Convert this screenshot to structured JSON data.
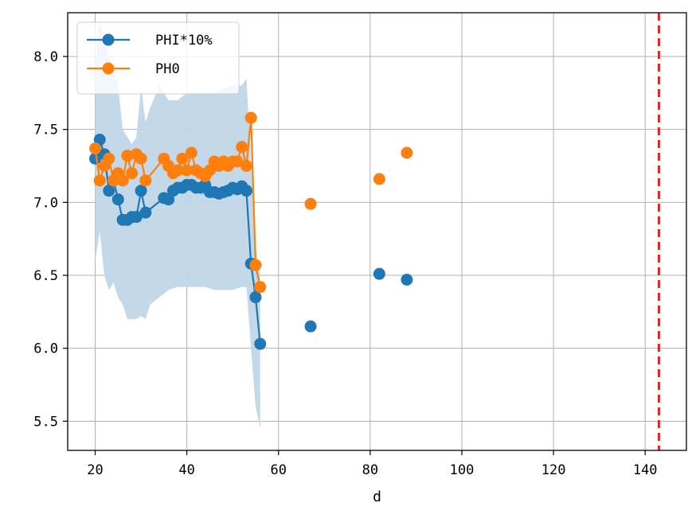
{
  "chart_data": {
    "type": "line",
    "title": "",
    "xlabel": "d",
    "ylabel": "",
    "xlim": [
      14,
      149
    ],
    "ylim": [
      5.3,
      8.3
    ],
    "xticks": [
      20,
      40,
      60,
      80,
      100,
      120,
      140
    ],
    "yticks": [
      5.5,
      6.0,
      6.5,
      7.0,
      7.5,
      8.0
    ],
    "xtick_labels": [
      "20",
      "40",
      "60",
      "80",
      "100",
      "120",
      "140"
    ],
    "ytick_labels": [
      "5.5",
      "6.0",
      "6.5",
      "7.0",
      "7.5",
      "8.0"
    ],
    "grid": true,
    "legend_position": "top-left",
    "vertical_line": {
      "x": 143,
      "color": "#ff0000",
      "style": "dashed"
    },
    "band": {
      "color": "#c0d6e8",
      "x": [
        20,
        21,
        22,
        23,
        24,
        25,
        26,
        27,
        28,
        29,
        30,
        31,
        32,
        34,
        36,
        38,
        40,
        42,
        44,
        46,
        48,
        50,
        52,
        53,
        54,
        55,
        56
      ],
      "upper": [
        7.95,
        8.25,
        8.1,
        8.0,
        7.9,
        7.8,
        7.5,
        7.45,
        7.4,
        7.45,
        7.8,
        7.55,
        7.65,
        7.8,
        7.7,
        7.7,
        7.75,
        7.75,
        7.75,
        7.75,
        7.78,
        7.8,
        7.8,
        7.85,
        7.3,
        6.7,
        6.5
      ],
      "lower": [
        6.6,
        6.8,
        6.5,
        6.4,
        6.45,
        6.35,
        6.3,
        6.2,
        6.2,
        6.2,
        6.22,
        6.2,
        6.3,
        6.35,
        6.4,
        6.42,
        6.42,
        6.42,
        6.42,
        6.4,
        6.4,
        6.4,
        6.42,
        6.42,
        6.0,
        5.6,
        5.45
      ]
    },
    "series": [
      {
        "name": "PHI*10%",
        "color": "#1f77b4",
        "x": [
          20,
          21,
          22,
          23,
          24,
          25,
          26,
          27,
          28,
          29,
          30,
          31,
          35,
          36,
          37,
          38,
          39,
          40,
          41,
          42,
          43,
          44,
          45,
          46,
          47,
          48,
          49,
          50,
          51,
          52,
          53,
          54,
          55,
          56
        ],
        "y": [
          7.3,
          7.43,
          7.33,
          7.08,
          7.15,
          7.02,
          6.88,
          6.88,
          6.9,
          6.9,
          7.08,
          6.93,
          7.03,
          7.02,
          7.08,
          7.1,
          7.1,
          7.12,
          7.12,
          7.1,
          7.1,
          7.12,
          7.07,
          7.07,
          7.06,
          7.07,
          7.08,
          7.1,
          7.09,
          7.11,
          7.08,
          6.58,
          6.35,
          6.03
        ],
        "extra_x": [
          67,
          82,
          88
        ],
        "extra_y": [
          6.15,
          6.51,
          6.47
        ]
      },
      {
        "name": "PH0",
        "color": "#ff7f0e",
        "x": [
          20,
          21,
          22,
          23,
          24,
          25,
          26,
          27,
          28,
          29,
          30,
          31,
          35,
          36,
          37,
          38,
          39,
          40,
          41,
          42,
          43,
          44,
          45,
          46,
          47,
          48,
          49,
          50,
          51,
          52,
          53,
          54,
          55,
          56
        ],
        "y": [
          7.37,
          7.15,
          7.25,
          7.3,
          7.15,
          7.2,
          7.15,
          7.32,
          7.2,
          7.33,
          7.3,
          7.15,
          7.3,
          7.25,
          7.2,
          7.22,
          7.3,
          7.22,
          7.34,
          7.22,
          7.2,
          7.18,
          7.22,
          7.28,
          7.25,
          7.28,
          7.25,
          7.28,
          7.28,
          7.38,
          7.25,
          7.58,
          6.57,
          6.42
        ],
        "extra_x": [
          67,
          82,
          88
        ],
        "extra_y": [
          6.99,
          7.16,
          7.34
        ]
      }
    ]
  }
}
